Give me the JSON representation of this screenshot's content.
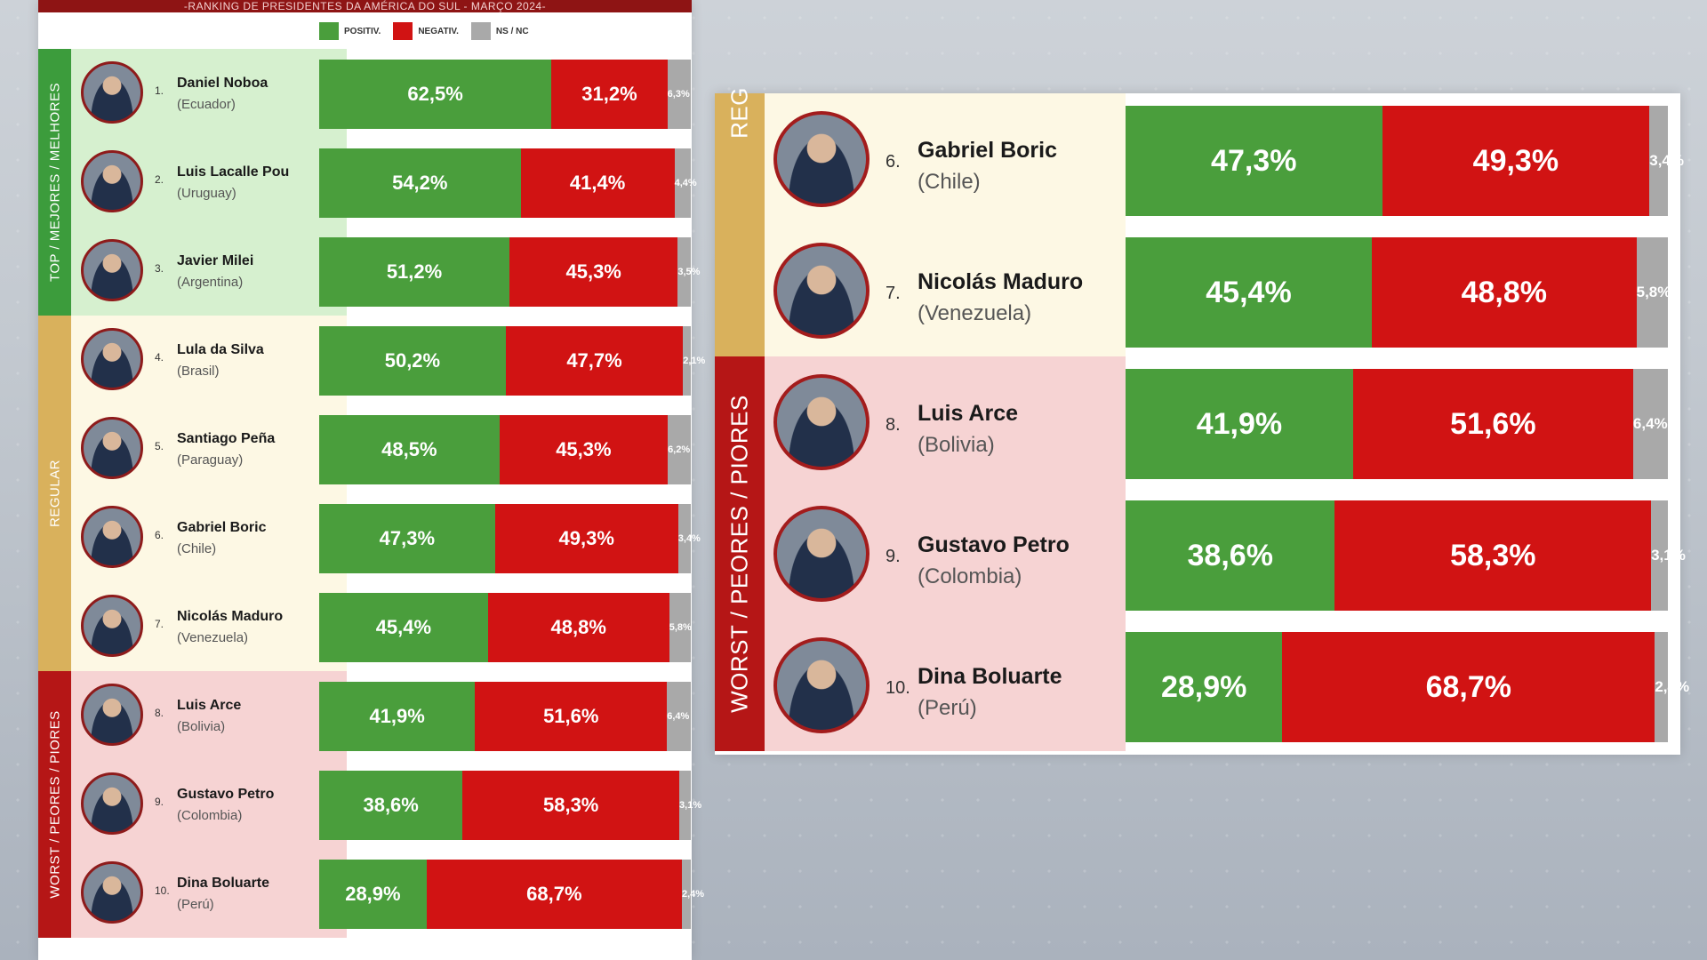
{
  "header": {
    "title": "-RANKING DE PRESIDENTES DA AMÉRICA DO SUL - MARÇO 2024-"
  },
  "legend": [
    {
      "label": "POSITIV.",
      "color": "#4a9e3c"
    },
    {
      "label": "NEGATIV.",
      "color": "#d11313"
    },
    {
      "label": "NS / NC",
      "color": "#a9a9a9"
    }
  ],
  "categories": [
    {
      "key": "top",
      "label": "TOP / MEJORES / MELHORES",
      "strip_color": "#3c9c3c",
      "bg_color": "#d6f0cf"
    },
    {
      "key": "regular",
      "label": "REGULAR",
      "strip_color": "#d9b15c",
      "bg_color": "#fdf8e4"
    },
    {
      "key": "worst",
      "label": "WORST / PEORES / PIORES",
      "strip_color": "#b51616",
      "bg_color": "#f6d3d3"
    }
  ],
  "right_panel": {
    "top_strip_label": "REG",
    "worst_strip_label": "WORST / PEORES / PIORES"
  },
  "colors": {
    "positive": "#4a9e3c",
    "negative": "#d11313",
    "ns": "#a9a9a9",
    "accent": "#8e1414"
  },
  "chart_data": {
    "type": "bar",
    "stacked": true,
    "orientation": "horizontal",
    "title": "-RANKING DE PRESIDENTES DA AMÉRICA DO SUL - MARÇO 2024-",
    "categories": [
      "Daniel Noboa",
      "Luis Lacalle Pou",
      "Javier Milei",
      "Lula da Silva",
      "Santiago Peña",
      "Gabriel Boric",
      "Nicolás Maduro",
      "Luis Arce",
      "Gustavo Petro",
      "Dina Boluarte"
    ],
    "series": [
      {
        "name": "POSITIV.",
        "values": [
          62.5,
          54.2,
          51.2,
          50.2,
          48.5,
          47.3,
          45.4,
          41.9,
          38.6,
          28.9
        ]
      },
      {
        "name": "NEGATIV.",
        "values": [
          31.2,
          41.4,
          45.3,
          47.7,
          45.3,
          49.3,
          48.8,
          51.6,
          58.3,
          68.7
        ]
      },
      {
        "name": "NS / NC",
        "values": [
          6.3,
          4.4,
          3.5,
          2.1,
          6.2,
          3.4,
          5.8,
          6.4,
          3.1,
          2.4
        ]
      }
    ],
    "legend": "top",
    "xlim": [
      0,
      100
    ]
  },
  "presidents": [
    {
      "rank": "1.",
      "name": "Daniel Noboa",
      "country": "(Ecuador)",
      "category": "top",
      "pos": "62,5%",
      "neg": "31,2%",
      "ns": "6,3%"
    },
    {
      "rank": "2.",
      "name": "Luis Lacalle Pou",
      "country": "(Uruguay)",
      "category": "top",
      "pos": "54,2%",
      "neg": "41,4%",
      "ns": "4,4%"
    },
    {
      "rank": "3.",
      "name": "Javier Milei",
      "country": "(Argentina)",
      "category": "top",
      "pos": "51,2%",
      "neg": "45,3%",
      "ns": "3,5%"
    },
    {
      "rank": "4.",
      "name": "Lula da Silva",
      "country": "(Brasil)",
      "category": "regular",
      "pos": "50,2%",
      "neg": "47,7%",
      "ns": "2,1%"
    },
    {
      "rank": "5.",
      "name": "Santiago Peña",
      "country": "(Paraguay)",
      "category": "regular",
      "pos": "48,5%",
      "neg": "45,3%",
      "ns": "6,2%"
    },
    {
      "rank": "6.",
      "name": "Gabriel Boric",
      "country": "(Chile)",
      "category": "regular",
      "pos": "47,3%",
      "neg": "49,3%",
      "ns": "3,4%"
    },
    {
      "rank": "7.",
      "name": "Nicolás Maduro",
      "country": "(Venezuela)",
      "category": "regular",
      "pos": "45,4%",
      "neg": "48,8%",
      "ns": "5,8%"
    },
    {
      "rank": "8.",
      "name": "Luis Arce",
      "country": "(Bolivia)",
      "category": "worst",
      "pos": "41,9%",
      "neg": "51,6%",
      "ns": "6,4%"
    },
    {
      "rank": "9.",
      "name": "Gustavo Petro",
      "country": "(Colombia)",
      "category": "worst",
      "pos": "38,6%",
      "neg": "58,3%",
      "ns": "3,1%"
    },
    {
      "rank": "10.",
      "name": "Dina Boluarte",
      "country": "(Perú)",
      "category": "worst",
      "pos": "28,9%",
      "neg": "68,7%",
      "ns": "2,4%"
    }
  ]
}
